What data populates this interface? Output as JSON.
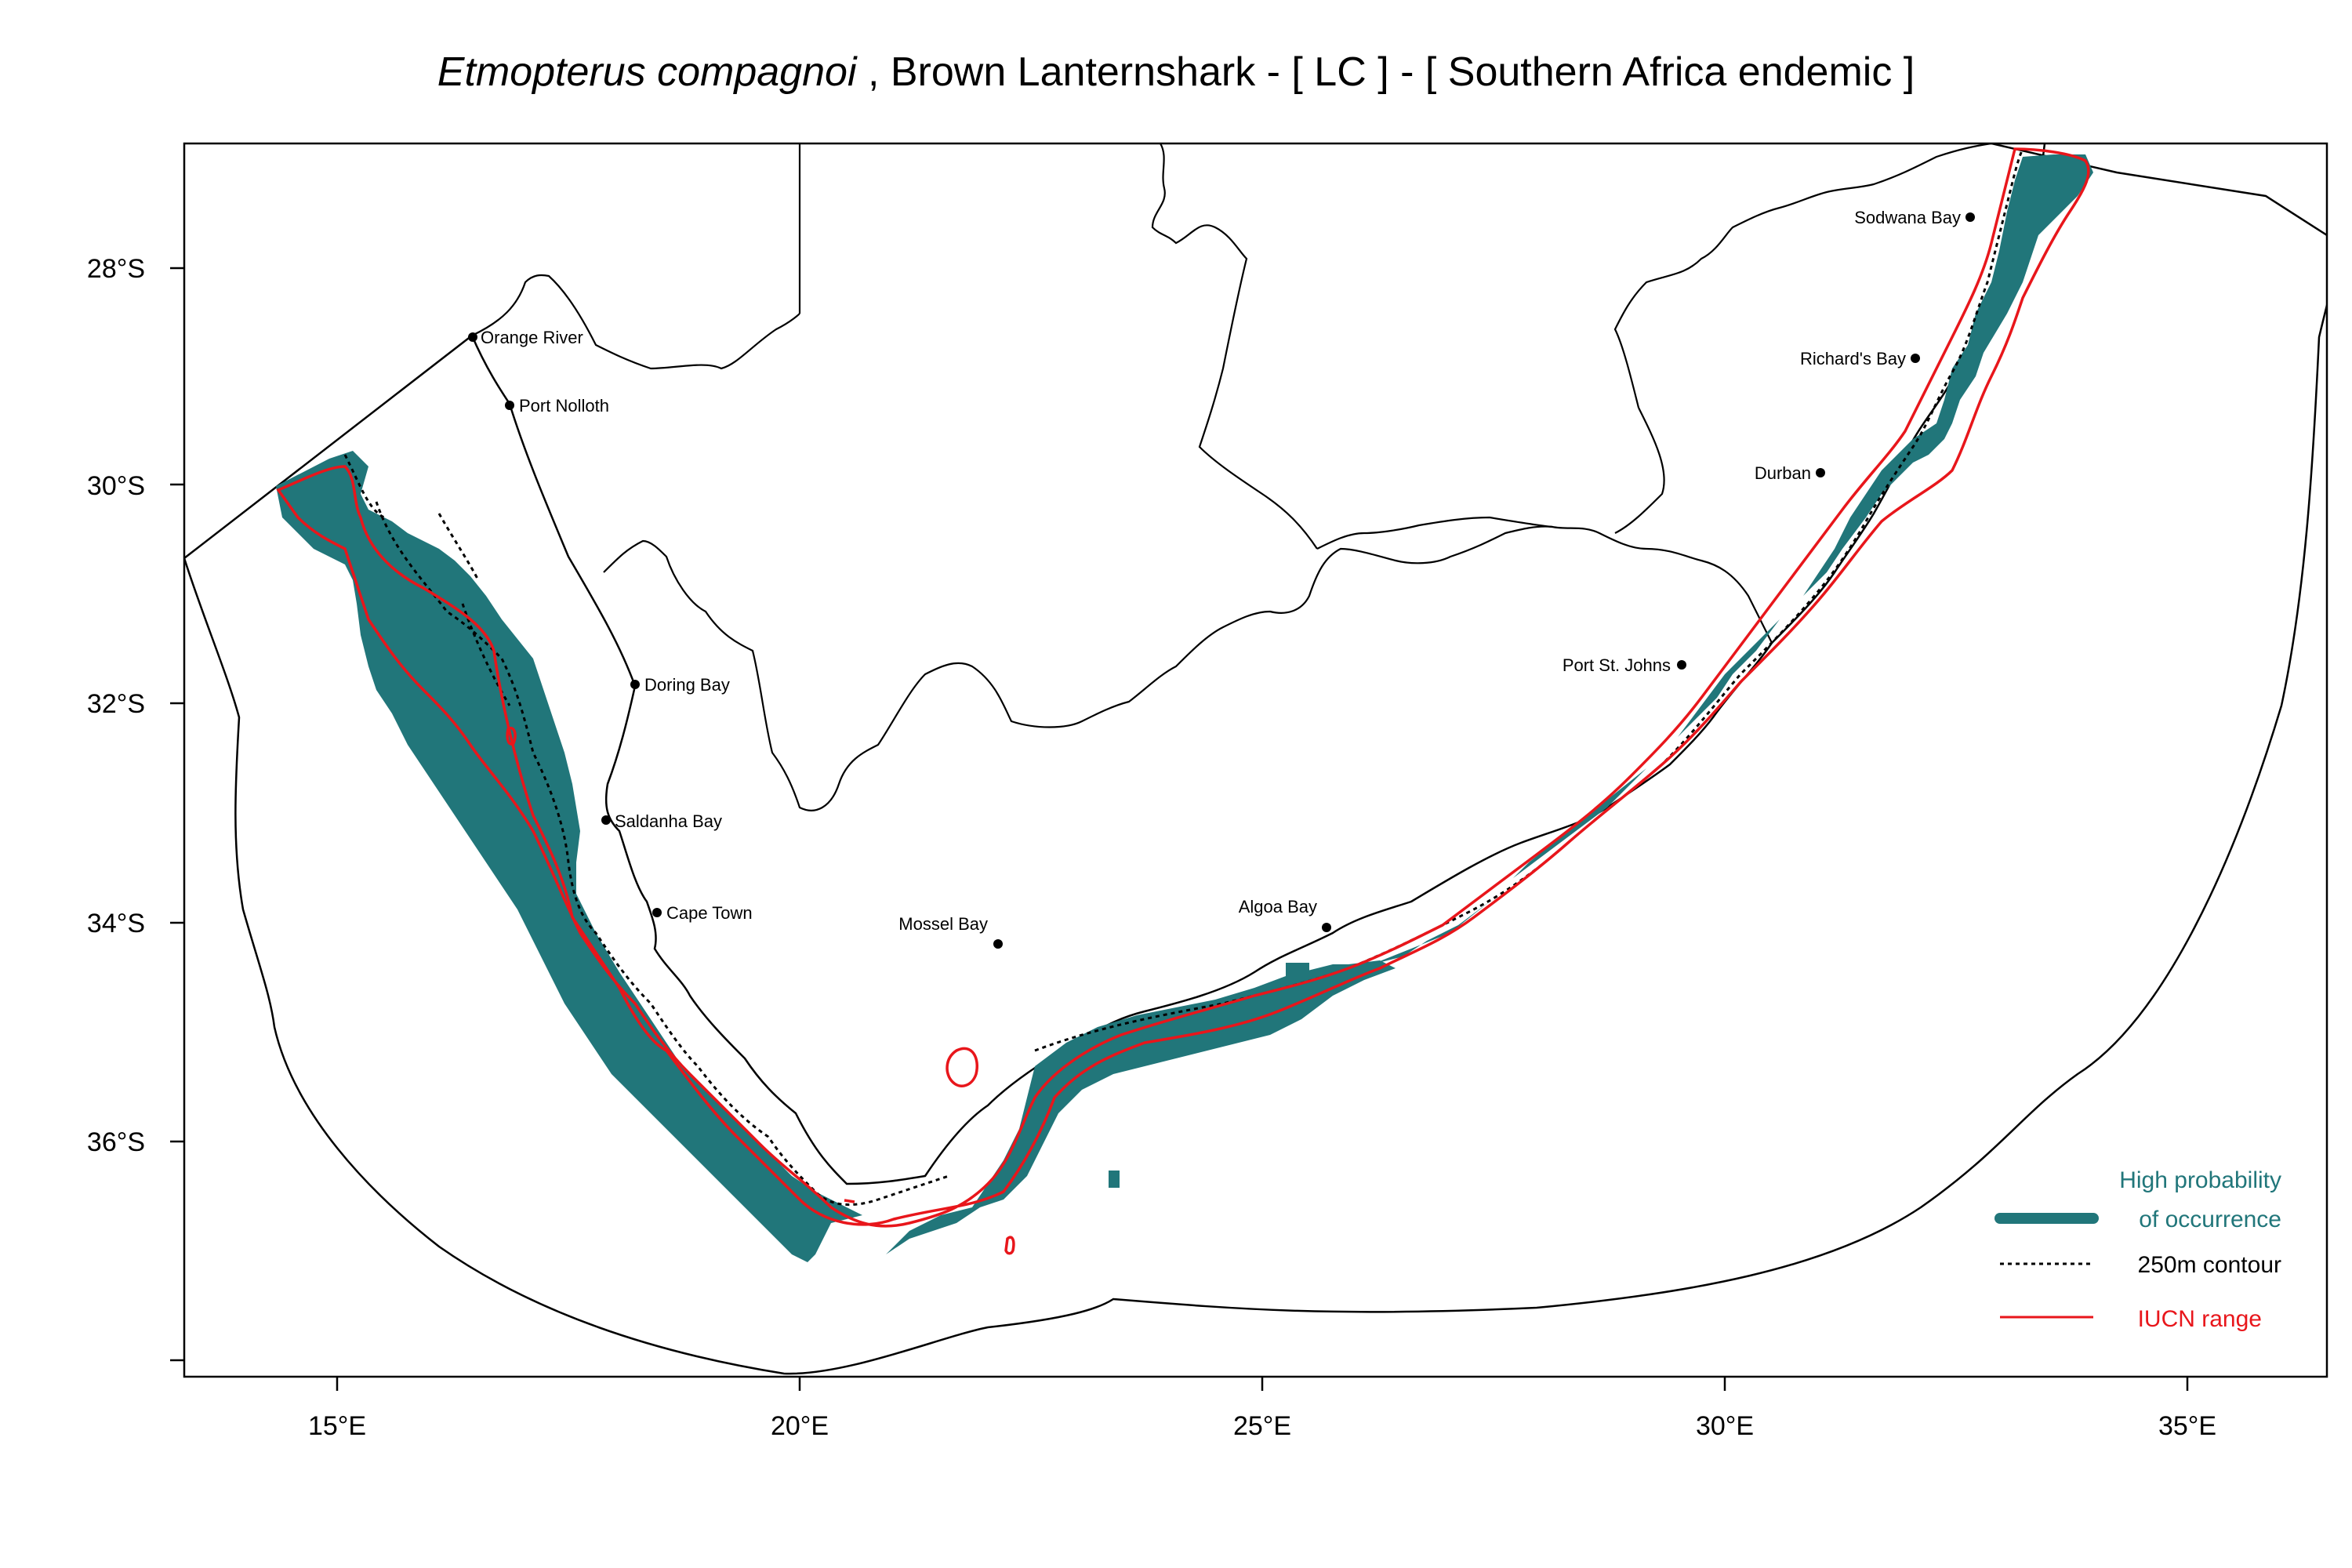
{
  "title": {
    "species": "Etmopterus compagnoi",
    "rest": " , Brown Lanternshark  - [ LC ] - [ Southern Africa endemic ]"
  },
  "map": {
    "lon_range": [
      13.3,
      36.6
    ],
    "lat_range": [
      -38.1,
      -26.85
    ],
    "x_ticks": [
      {
        "value": 15,
        "label": "15°E"
      },
      {
        "value": 20,
        "label": "20°E"
      },
      {
        "value": 25,
        "label": "25°E"
      },
      {
        "value": 30,
        "label": "30°E"
      },
      {
        "value": 35,
        "label": "35°E"
      }
    ],
    "y_ticks": [
      {
        "value": -28,
        "label": "28°S"
      },
      {
        "value": -30,
        "label": "30°S"
      },
      {
        "value": -32,
        "label": "32°S"
      },
      {
        "value": -34,
        "label": "34°S"
      },
      {
        "value": -36,
        "label": "36°S"
      }
    ]
  },
  "places": [
    {
      "name": "Orange River",
      "lon": 16.45,
      "lat": -28.63
    },
    {
      "name": "Port Nolloth",
      "lon": 16.87,
      "lat": -29.25
    },
    {
      "name": "Doring Bay",
      "lon": 18.23,
      "lat": -31.82
    },
    {
      "name": "Saldanha Bay",
      "lon": 17.95,
      "lat": -33.05
    },
    {
      "name": "Cape Town",
      "lon": 18.42,
      "lat": -33.92
    },
    {
      "name": "Mossel Bay",
      "lon": 22.13,
      "lat": -34.18
    },
    {
      "name": "Algoa Bay",
      "lon": 25.7,
      "lat": -34.02
    },
    {
      "name": "Port St. Johns",
      "lon": 29.55,
      "lat": -31.63
    },
    {
      "name": "Durban",
      "lon": 31.05,
      "lat": -29.88
    },
    {
      "name": "Richard's Bay",
      "lon": 32.08,
      "lat": -28.82
    },
    {
      "name": "Sodwana Bay",
      "lon": 32.68,
      "lat": -27.55
    }
  ],
  "legend": {
    "occurrence_line1": "High probability",
    "occurrence_line2": "of occurrence",
    "contour": "250m contour",
    "iucn": "IUCN range"
  },
  "colors": {
    "occurrence": "#21767a",
    "iucn": "#e8161b",
    "coast": "#000000"
  }
}
